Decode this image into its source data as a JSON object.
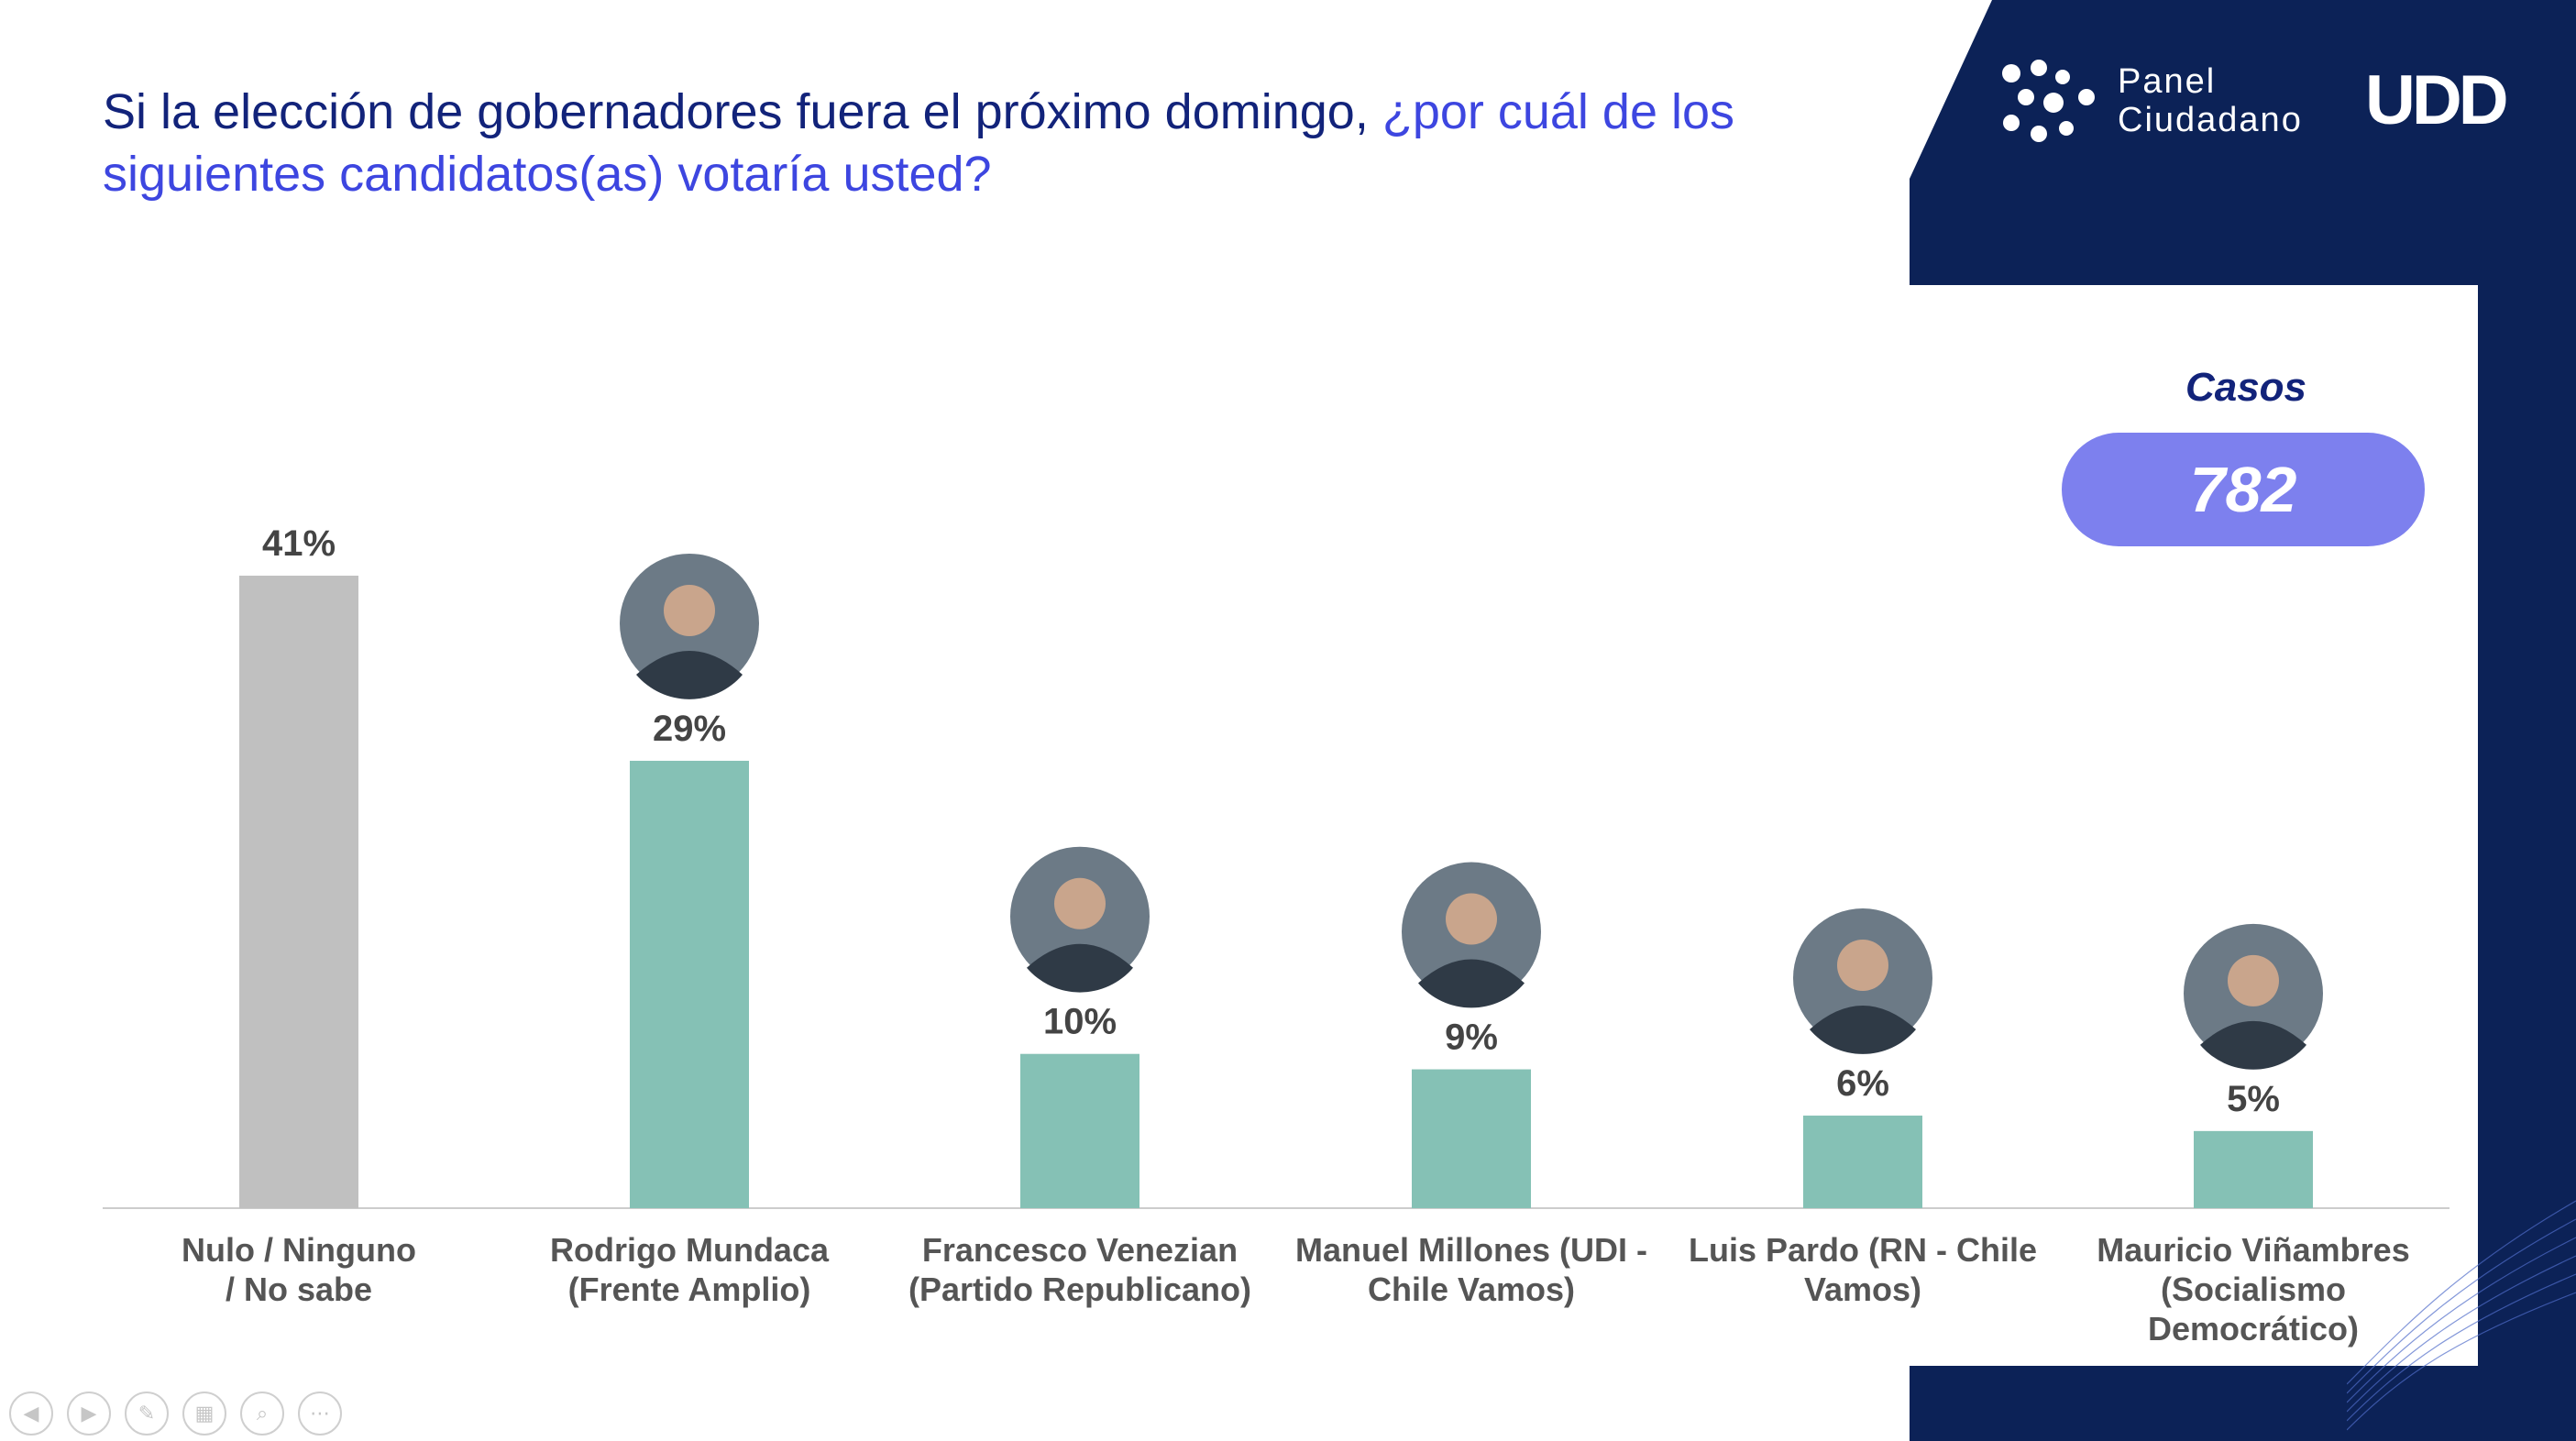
{
  "title": {
    "part1": "Si la elección de gobernadores fuera el próximo domingo, ",
    "part2": "¿por cuál de los siguientes candidatos(as) votaría usted?"
  },
  "logo": {
    "line1": "Panel",
    "line2": "Ciudadano",
    "brand": "UDD"
  },
  "casos": {
    "label": "Casos",
    "value": "782"
  },
  "colors": {
    "accent": "#85c1b5",
    "neutral": "#c0c0c0",
    "navy": "#0c2257",
    "pill": "#7d80ee",
    "title": "#12237a",
    "title_accent": "#3d46e0"
  },
  "chart_data": {
    "type": "bar",
    "categories": [
      [
        "Nulo / Ninguno",
        "/ No sabe"
      ],
      [
        "Rodrigo Mundaca",
        "(Frente Amplio)"
      ],
      [
        "Francesco Venezian",
        "(Partido Republicano)"
      ],
      [
        "Manuel Millones (UDI -",
        "Chile Vamos)"
      ],
      [
        "Luis Pardo (RN - Chile",
        "Vamos)"
      ],
      [
        "Mauricio Viñambres",
        "(Socialismo",
        "Democrático)"
      ]
    ],
    "values": [
      41,
      29,
      10,
      9,
      6,
      5
    ],
    "value_labels": [
      "41%",
      "29%",
      "10%",
      "9%",
      "6%",
      "5%"
    ],
    "bar_colors": [
      "#c0c0c0",
      "#85c1b5",
      "#85c1b5",
      "#85c1b5",
      "#85c1b5",
      "#85c1b5"
    ],
    "has_photo": [
      false,
      true,
      true,
      true,
      true,
      true
    ],
    "ylim": [
      0,
      41
    ],
    "grid": false,
    "legend": "none"
  },
  "controls": [
    "prev-icon",
    "next-icon",
    "pen-icon",
    "slides-icon",
    "zoom-icon",
    "more-icon"
  ]
}
